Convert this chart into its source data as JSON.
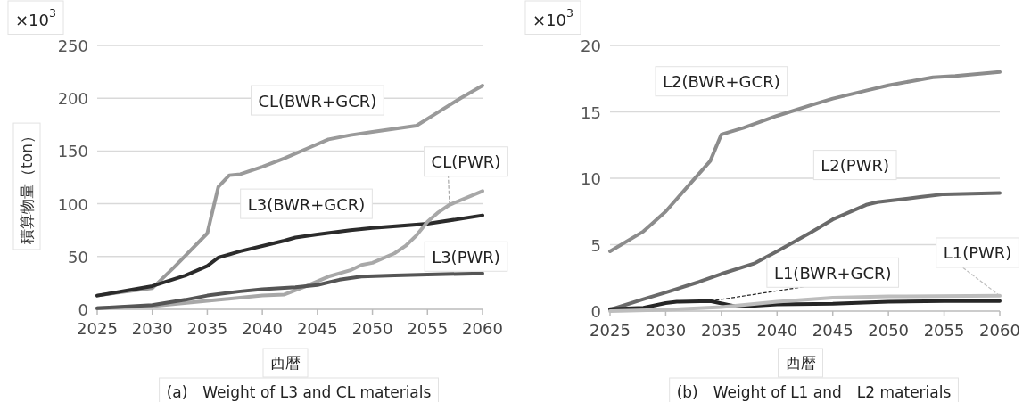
{
  "chart_data": [
    {
      "type": "line",
      "title": "(a)　Weight of L3 and CL materials",
      "xlabel": "西暦",
      "ylabel": "積算物量（ton）",
      "annotations": [
        "×10$^{3}$"
      ],
      "xlim": [
        2025,
        2060
      ],
      "xticks": [
        2025,
        2030,
        2035,
        2040,
        2045,
        2050,
        2055,
        2060
      ],
      "ylim": [
        0,
        250
      ],
      "yticks": [
        0,
        50,
        100,
        150,
        200,
        250
      ],
      "grid": "y",
      "series": [
        {
          "name": "CL(BWR+GCR)",
          "color": "#9a9a9a",
          "x": [
            2025,
            2027,
            2030,
            2032,
            2035,
            2036,
            2037,
            2038,
            2040,
            2042,
            2044,
            2046,
            2048,
            2050,
            2052,
            2054,
            2056,
            2058,
            2060
          ],
          "values": [
            13,
            16,
            20,
            40,
            72,
            116,
            127,
            128,
            135,
            143,
            152,
            161,
            165,
            168,
            171,
            174,
            187,
            200,
            212
          ]
        },
        {
          "name": "L3(BWR+GCR)",
          "color": "#2b2b2b",
          "x": [
            2025,
            2030,
            2033,
            2035,
            2036,
            2038,
            2040,
            2042,
            2043,
            2045,
            2048,
            2050,
            2055,
            2060
          ],
          "values": [
            13,
            22,
            32,
            41,
            49,
            55,
            60,
            65,
            68,
            71,
            75,
            77,
            81,
            89
          ]
        },
        {
          "name": "CL(PWR)",
          "color": "#a8a8a8",
          "x": [
            2025,
            2030,
            2035,
            2040,
            2042,
            2044,
            2046,
            2048,
            2049,
            2050,
            2052,
            2053,
            2054,
            2055,
            2056,
            2057,
            2060
          ],
          "values": [
            1,
            3,
            8,
            13,
            14,
            22,
            31,
            37,
            42,
            44,
            53,
            60,
            70,
            83,
            92,
            99,
            112
          ]
        },
        {
          "name": "L3(PWR)",
          "color": "#555555",
          "x": [
            2025,
            2030,
            2033,
            2035,
            2038,
            2040,
            2043,
            2045,
            2047,
            2049,
            2052,
            2055,
            2060
          ],
          "values": [
            1,
            4,
            9,
            13,
            17,
            19,
            21,
            23,
            28,
            31,
            32,
            33,
            34
          ]
        }
      ]
    },
    {
      "type": "line",
      "title": "(b)　Weight of L1 and　L2 materials",
      "xlabel": "西暦",
      "annotations": [
        "×10$^{3}$"
      ],
      "xlim": [
        2025,
        2060
      ],
      "xticks": [
        2025,
        2030,
        2035,
        2040,
        2045,
        2050,
        2055,
        2060
      ],
      "ylim": [
        0,
        20
      ],
      "yticks": [
        0,
        5,
        10,
        15,
        20
      ],
      "grid": "y",
      "series": [
        {
          "name": "L2(BWR+GCR)",
          "color": "#8c8c8c",
          "x": [
            2025,
            2028,
            2030,
            2032,
            2034,
            2035,
            2037,
            2040,
            2043,
            2045,
            2048,
            2050,
            2052,
            2054,
            2056,
            2060
          ],
          "values": [
            4.5,
            6,
            7.5,
            9.4,
            11.3,
            13.3,
            13.8,
            14.7,
            15.5,
            16,
            16.6,
            17,
            17.3,
            17.6,
            17.7,
            18
          ]
        },
        {
          "name": "L2(PWR)",
          "color": "#6a6a6a",
          "x": [
            2025,
            2028,
            2030,
            2033,
            2035,
            2038,
            2040,
            2043,
            2045,
            2048,
            2049,
            2050,
            2053,
            2055,
            2060
          ],
          "values": [
            0.1,
            0.9,
            1.4,
            2.2,
            2.8,
            3.6,
            4.5,
            5.9,
            6.9,
            8,
            8.2,
            8.3,
            8.6,
            8.8,
            8.9
          ]
        },
        {
          "name": "L1(BWR+GCR)",
          "color": "#262626",
          "x": [
            2025,
            2028,
            2030,
            2031,
            2034,
            2036,
            2038,
            2040,
            2045,
            2050,
            2055,
            2060
          ],
          "values": [
            0.15,
            0.25,
            0.6,
            0.7,
            0.75,
            0.4,
            0.4,
            0.5,
            0.55,
            0.7,
            0.75,
            0.75
          ]
        },
        {
          "name": "L1(PWR)",
          "color": "#bdbdbd",
          "x": [
            2025,
            2030,
            2035,
            2040,
            2045,
            2050,
            2060
          ],
          "values": [
            0,
            0.1,
            0.3,
            0.7,
            1,
            1.1,
            1.15
          ]
        }
      ]
    }
  ]
}
